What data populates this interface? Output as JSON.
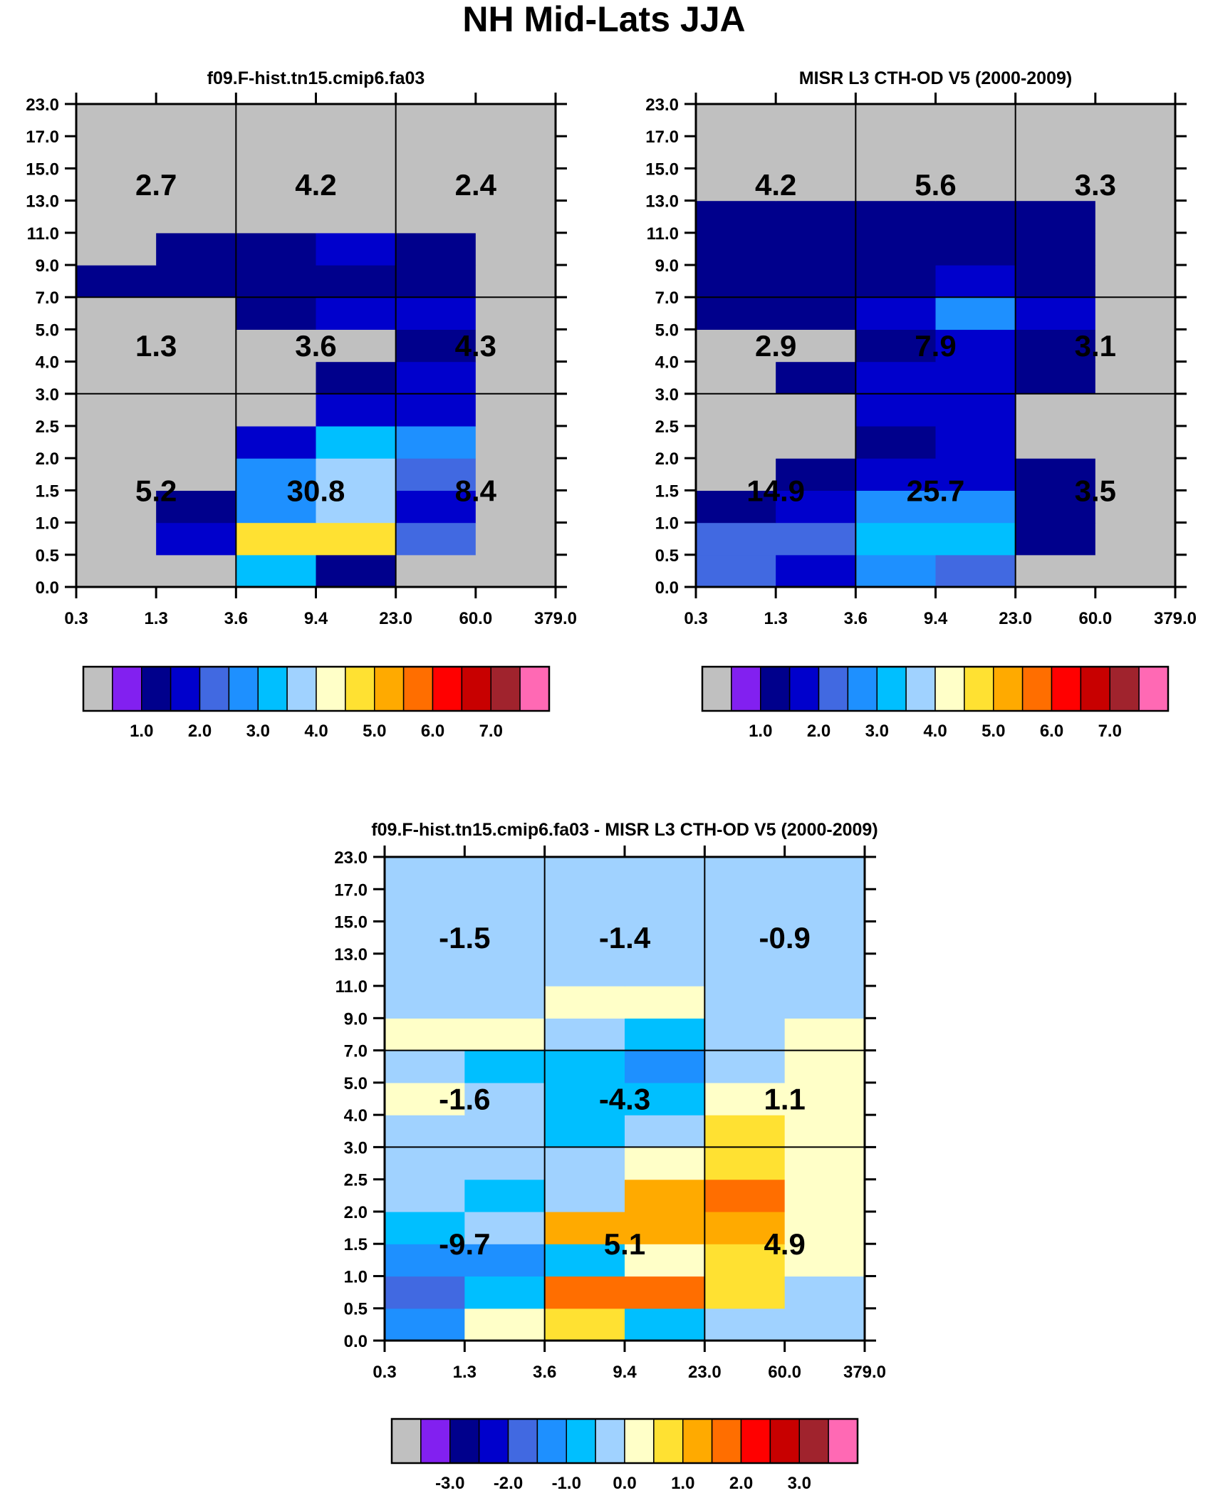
{
  "figure_title": "NH Mid-Lats JJA",
  "chart_data": [
    {
      "type": "heatmap",
      "title": "f09.F-hist.tn15.cmip6.fa03",
      "x_tick_labels": [
        "0.3",
        "1.3",
        "3.6",
        "9.4",
        "23.0",
        "60.0",
        "379.0"
      ],
      "y_tick_labels": [
        "0.0",
        "0.5",
        "1.0",
        "1.5",
        "2.0",
        "2.5",
        "3.0",
        "4.0",
        "5.0",
        "7.0",
        "9.0",
        "11.0",
        "13.0",
        "15.0",
        "17.0",
        "23.0"
      ],
      "cells_bottom_to_top": [
        [
          0.0,
          0.0,
          3.0,
          1.0,
          0.0,
          0.0
        ],
        [
          0.0,
          1.5,
          4.5,
          4.5,
          2.0,
          0.0
        ],
        [
          0.0,
          1.0,
          2.5,
          3.5,
          1.5,
          0.0
        ],
        [
          0.0,
          0.0,
          2.5,
          3.5,
          2.0,
          0.0
        ],
        [
          0.0,
          0.0,
          1.5,
          3.0,
          2.5,
          0.0
        ],
        [
          0.0,
          0.0,
          0.0,
          1.5,
          1.5,
          0.0
        ],
        [
          0.0,
          0.0,
          0.0,
          1.0,
          1.5,
          0.0
        ],
        [
          0.0,
          0.0,
          0.0,
          0.0,
          1.0,
          0.0
        ],
        [
          0.0,
          0.0,
          1.0,
          1.5,
          1.5,
          0.0
        ],
        [
          1.0,
          1.0,
          1.0,
          1.0,
          1.0,
          0.0
        ],
        [
          0.0,
          1.0,
          1.0,
          1.5,
          1.0,
          0.0
        ],
        [
          0.0,
          0.0,
          0.0,
          0.0,
          0.0,
          0.0
        ],
        [
          0.0,
          0.0,
          0.0,
          0.0,
          0.0,
          0.0
        ],
        [
          0.0,
          0.0,
          0.0,
          0.0,
          0.0,
          0.0
        ],
        [
          0.0,
          0.0,
          0.0,
          0.0,
          0.0,
          0.0
        ]
      ],
      "group_totals": [
        {
          "label": "2.7",
          "col": 1,
          "row": 12.5
        },
        {
          "label": "4.2",
          "col": 3,
          "row": 12.5
        },
        {
          "label": "2.4",
          "col": 5,
          "row": 12.5
        },
        {
          "label": "1.3",
          "col": 1,
          "row": 7.5
        },
        {
          "label": "3.6",
          "col": 3,
          "row": 7.5
        },
        {
          "label": "4.3",
          "col": 5,
          "row": 7.5
        },
        {
          "label": "5.2",
          "col": 1,
          "row": 3
        },
        {
          "label": "30.8",
          "col": 3,
          "row": 3
        },
        {
          "label": "8.4",
          "col": 5,
          "row": 3
        }
      ],
      "colorbar": {
        "tick_labels": [
          "1.0",
          "2.0",
          "3.0",
          "4.0",
          "5.0",
          "6.0",
          "7.0"
        ],
        "first_level": 0.5,
        "step": 0.5
      }
    },
    {
      "type": "heatmap",
      "title": "MISR L3 CTH-OD V5 (2000-2009)",
      "x_tick_labels": [
        "0.3",
        "1.3",
        "3.6",
        "9.4",
        "23.0",
        "60.0",
        "379.0"
      ],
      "y_tick_labels": [
        "0.0",
        "0.5",
        "1.0",
        "1.5",
        "2.0",
        "2.5",
        "3.0",
        "4.0",
        "5.0",
        "7.0",
        "9.0",
        "11.0",
        "13.0",
        "15.0",
        "17.0",
        "23.0"
      ],
      "cells_bottom_to_top": [
        [
          2.0,
          1.5,
          2.5,
          2.0,
          0.0,
          0.0
        ],
        [
          2.0,
          2.0,
          3.0,
          3.0,
          1.0,
          0.0
        ],
        [
          1.0,
          1.5,
          2.5,
          2.5,
          1.0,
          0.0
        ],
        [
          0.0,
          1.0,
          1.5,
          1.5,
          1.0,
          0.0
        ],
        [
          0.0,
          0.0,
          1.0,
          1.5,
          0.0,
          0.0
        ],
        [
          0.0,
          0.0,
          1.5,
          1.5,
          0.0,
          0.0
        ],
        [
          0.0,
          1.0,
          1.5,
          1.5,
          1.0,
          0.0
        ],
        [
          0.0,
          0.0,
          1.0,
          1.5,
          1.0,
          0.0
        ],
        [
          1.0,
          1.0,
          1.5,
          2.5,
          1.5,
          0.0
        ],
        [
          1.0,
          1.0,
          1.0,
          1.5,
          1.0,
          0.0
        ],
        [
          1.0,
          1.0,
          1.0,
          1.0,
          1.0,
          0.0
        ],
        [
          1.0,
          1.0,
          1.0,
          1.0,
          1.0,
          0.0
        ],
        [
          0.0,
          0.0,
          0.0,
          0.0,
          0.0,
          0.0
        ],
        [
          0.0,
          0.0,
          0.0,
          0.0,
          0.0,
          0.0
        ],
        [
          0.0,
          0.0,
          0.0,
          0.0,
          0.0,
          0.0
        ]
      ],
      "group_totals": [
        {
          "label": "4.2",
          "col": 1,
          "row": 12.5
        },
        {
          "label": "5.6",
          "col": 3,
          "row": 12.5
        },
        {
          "label": "3.3",
          "col": 5,
          "row": 12.5
        },
        {
          "label": "2.9",
          "col": 1,
          "row": 7.5
        },
        {
          "label": "7.9",
          "col": 3,
          "row": 7.5
        },
        {
          "label": "3.1",
          "col": 5,
          "row": 7.5
        },
        {
          "label": "14.9",
          "col": 1,
          "row": 3
        },
        {
          "label": "25.7",
          "col": 3,
          "row": 3
        },
        {
          "label": "3.5",
          "col": 5,
          "row": 3
        }
      ],
      "colorbar": {
        "tick_labels": [
          "1.0",
          "2.0",
          "3.0",
          "4.0",
          "5.0",
          "6.0",
          "7.0"
        ],
        "first_level": 0.5,
        "step": 0.5
      }
    },
    {
      "type": "heatmap",
      "title": "f09.F-hist.tn15.cmip6.fa03 - MISR L3 CTH-OD V5 (2000-2009)",
      "x_tick_labels": [
        "0.3",
        "1.3",
        "3.6",
        "9.4",
        "23.0",
        "60.0",
        "379.0"
      ],
      "y_tick_labels": [
        "0.0",
        "0.5",
        "1.0",
        "1.5",
        "2.0",
        "2.5",
        "3.0",
        "4.0",
        "5.0",
        "7.0",
        "9.0",
        "11.0",
        "13.0",
        "15.0",
        "17.0",
        "23.0"
      ],
      "cells_bottom_to_top": [
        [
          -1.5,
          0.25,
          0.75,
          -1.0,
          -0.25,
          -0.25
        ],
        [
          -2.0,
          -1.0,
          1.75,
          1.75,
          0.75,
          -0.25
        ],
        [
          -1.5,
          -1.5,
          -1.0,
          0.25,
          0.75,
          0.25
        ],
        [
          -1.0,
          -0.25,
          1.25,
          1.25,
          1.25,
          0.25
        ],
        [
          -0.25,
          -1.0,
          -0.25,
          1.25,
          1.75,
          0.25
        ],
        [
          -0.25,
          -0.25,
          -0.25,
          0.25,
          0.75,
          0.25
        ],
        [
          -0.25,
          -0.25,
          -1.0,
          -0.25,
          0.75,
          0.25
        ],
        [
          0.25,
          -0.25,
          -1.0,
          -1.0,
          0.25,
          0.25
        ],
        [
          -0.25,
          -1.0,
          -1.0,
          -1.5,
          -0.25,
          0.25
        ],
        [
          0.25,
          0.25,
          -0.25,
          -1.0,
          -0.25,
          0.25
        ],
        [
          -0.25,
          -0.25,
          0.25,
          0.25,
          -0.25,
          -0.25
        ],
        [
          -0.25,
          -0.25,
          -0.25,
          -0.25,
          -0.25,
          -0.25
        ],
        [
          -0.25,
          -0.25,
          -0.25,
          -0.25,
          -0.25,
          -0.25
        ],
        [
          -0.25,
          -0.25,
          -0.25,
          -0.25,
          -0.25,
          -0.25
        ],
        [
          -0.25,
          -0.25,
          -0.25,
          -0.25,
          -0.25,
          -0.25
        ]
      ],
      "group_totals": [
        {
          "label": "-1.5",
          "col": 1,
          "row": 12.5
        },
        {
          "label": "-1.4",
          "col": 3,
          "row": 12.5
        },
        {
          "label": "-0.9",
          "col": 5,
          "row": 12.5
        },
        {
          "label": "-1.6",
          "col": 1,
          "row": 7.5
        },
        {
          "label": "-4.3",
          "col": 3,
          "row": 7.5
        },
        {
          "label": "1.1",
          "col": 5,
          "row": 7.5
        },
        {
          "label": "-9.7",
          "col": 1,
          "row": 3
        },
        {
          "label": "5.1",
          "col": 3,
          "row": 3
        },
        {
          "label": "4.9",
          "col": 5,
          "row": 3
        }
      ],
      "colorbar": {
        "tick_labels": [
          "-3.0",
          "-2.0",
          "-1.0",
          "0.0",
          "1.0",
          "2.0",
          "3.0"
        ],
        "first_level": -3.5,
        "step": 0.5
      }
    }
  ],
  "palette": [
    "#c0c0c0",
    "#8220f0",
    "#00008c",
    "#0000cc",
    "#4169e1",
    "#1e90ff",
    "#00bfff",
    "#a0d2ff",
    "#ffffc8",
    "#ffe132",
    "#ffaa00",
    "#ff6e00",
    "#ff0000",
    "#c80000",
    "#a0232d",
    "#ff69b4"
  ]
}
